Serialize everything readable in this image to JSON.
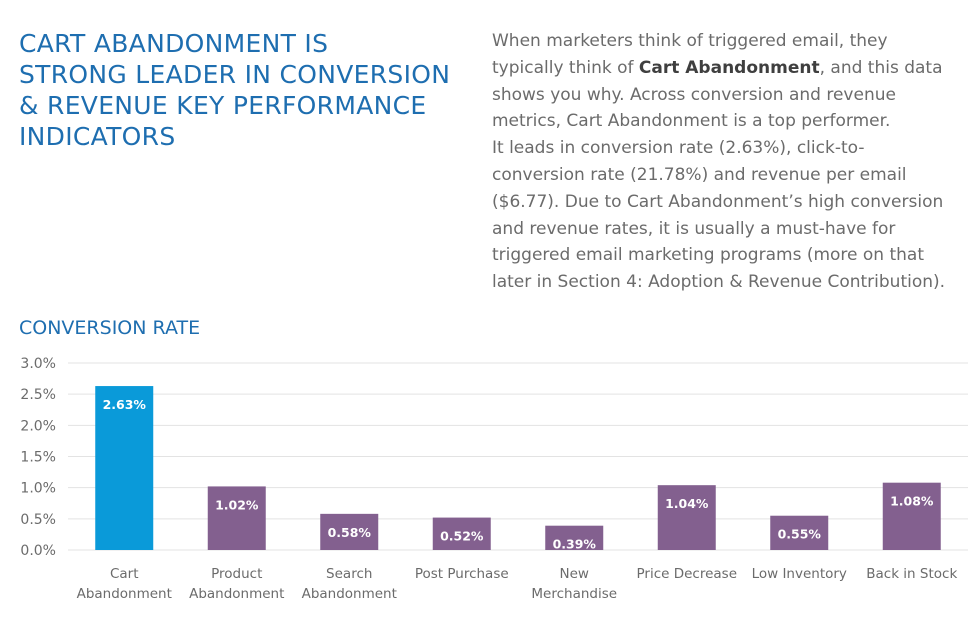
{
  "header": {
    "title_lines": [
      "CART ABANDONMENT IS",
      "STRONG LEADER IN CONVERSION",
      "& REVENUE KEY PERFORMANCE",
      "INDICATORS"
    ]
  },
  "intro": {
    "l1": "When marketers think of triggered email, they",
    "l2_pre": "typically think of ",
    "l2_bold": "Cart Abandonment",
    "l2_post": ", and this data",
    "l3": "shows you why. Across conversion and revenue",
    "l4": "metrics, Cart Abandonment is a top performer.",
    "l5": "It leads in conversion rate (2.63%), click-to-",
    "l6": "conversion rate (21.78%) and revenue per email",
    "l7": "($6.77). Due to Cart Abandonment’s high conversion",
    "l8": "and revenue rates, it is usually a must-have for",
    "l9": "triggered email marketing programs (more on that",
    "l10": "later in Section 4: Adoption & Revenue Contribution)."
  },
  "chart_data": {
    "type": "bar",
    "title": "CONVERSION RATE",
    "categories": [
      [
        "Cart",
        "Abandonment"
      ],
      [
        "Product",
        "Abandonment"
      ],
      [
        "Search",
        "Abandonment"
      ],
      [
        "Post Purchase"
      ],
      [
        "New",
        "Merchandise"
      ],
      [
        "Price Decrease"
      ],
      [
        "Low Inventory"
      ],
      [
        "Back in Stock"
      ]
    ],
    "values": [
      2.63,
      1.02,
      0.58,
      0.52,
      0.39,
      1.04,
      0.55,
      1.08
    ],
    "value_labels": [
      "2.63%",
      "1.02%",
      "0.58%",
      "0.52%",
      "0.39%",
      "1.04%",
      "0.55%",
      "1.08%"
    ],
    "yticks": [
      "0.0%",
      "0.5%",
      "1.0%",
      "1.5%",
      "2.0%",
      "2.5%",
      "3.0%"
    ],
    "ylim": [
      0,
      3.0
    ],
    "grid": true,
    "colors": {
      "highlight": "#0a9ad9",
      "default": "#83608f",
      "grid": "#e3e3e3",
      "axis_text": "#6b6b6b",
      "value_text": "#ffffff"
    },
    "highlight_index": 0
  }
}
